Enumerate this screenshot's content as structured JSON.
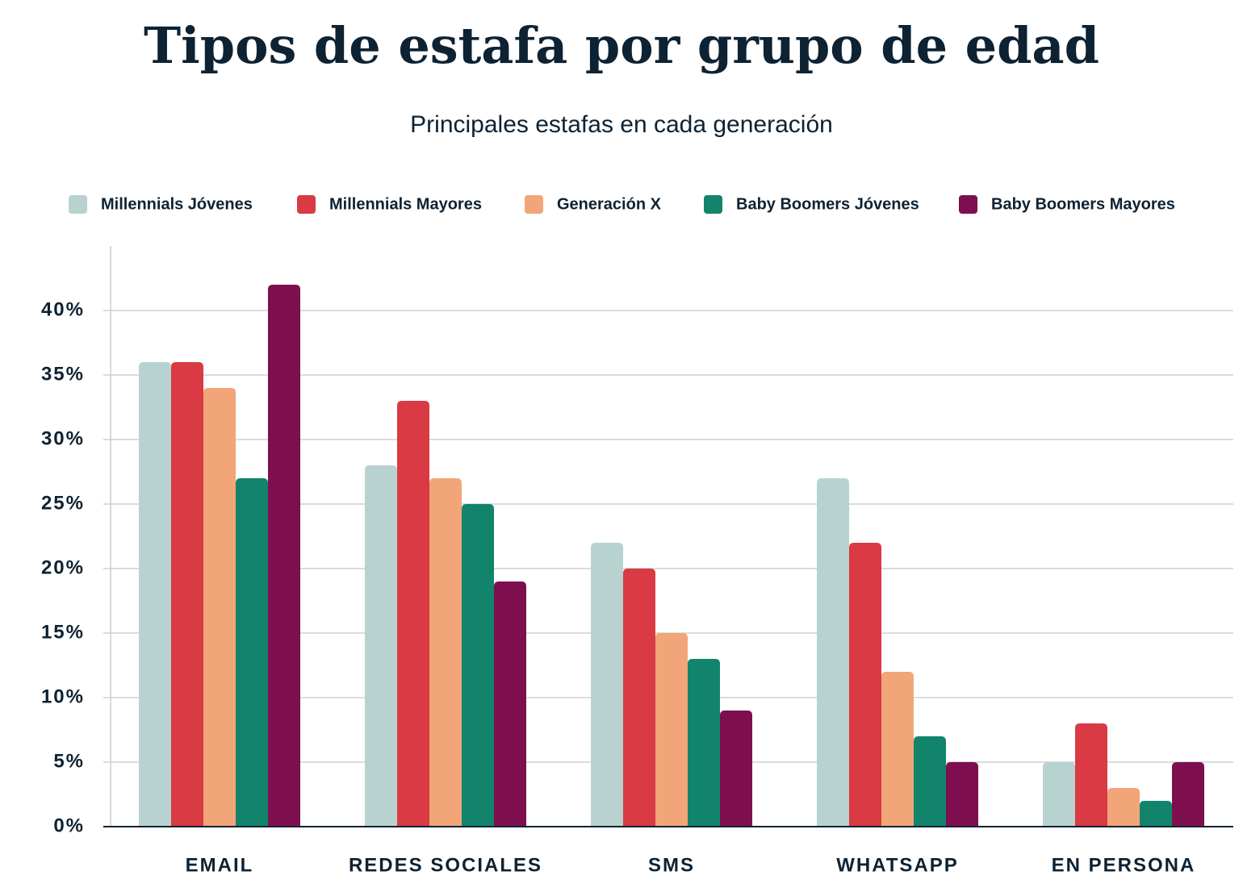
{
  "chart_data": {
    "type": "bar",
    "title": "Tipos de estafa por grupo de edad",
    "subtitle": "Principales estafas en cada generación",
    "categories": [
      "EMAIL",
      "REDES SOCIALES",
      "SMS",
      "WHATSAPP",
      "EN PERSONA"
    ],
    "series": [
      {
        "name": "Millennials Jóvenes",
        "color": "#b8d2d0",
        "values": [
          36,
          28,
          22,
          27,
          5
        ]
      },
      {
        "name": "Millennials Mayores",
        "color": "#d93a43",
        "values": [
          36,
          33,
          20,
          22,
          8
        ]
      },
      {
        "name": "Generación X",
        "color": "#f2a578",
        "values": [
          34,
          27,
          15,
          12,
          3
        ]
      },
      {
        "name": "Baby Boomers Jóvenes",
        "color": "#11846b",
        "values": [
          27,
          25,
          13,
          7,
          2
        ]
      },
      {
        "name": "Baby Boomers Mayores",
        "color": "#7d0f4f",
        "values": [
          42,
          19,
          9,
          5,
          5
        ]
      }
    ],
    "ylim": [
      0,
      45
    ],
    "yticks": [
      {
        "value": 0,
        "label": "0%"
      },
      {
        "value": 5,
        "label": "5%"
      },
      {
        "value": 10,
        "label": "10%"
      },
      {
        "value": 15,
        "label": "15%"
      },
      {
        "value": 20,
        "label": "20%"
      },
      {
        "value": 25,
        "label": "25%"
      },
      {
        "value": 30,
        "label": "30%"
      },
      {
        "value": 35,
        "label": "35%"
      },
      {
        "value": 40,
        "label": "40%"
      }
    ],
    "grid": true,
    "legend": "top"
  }
}
